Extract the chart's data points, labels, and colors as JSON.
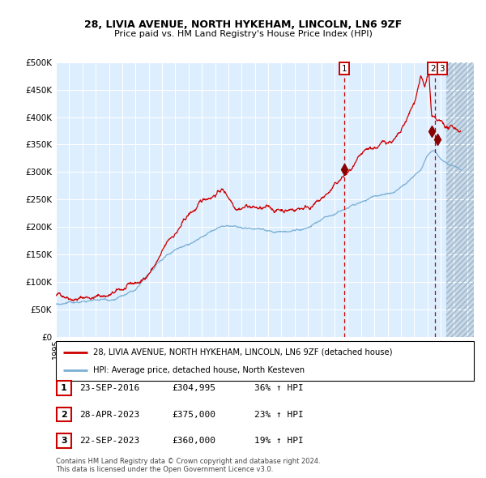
{
  "title": "28, LIVIA AVENUE, NORTH HYKEHAM, LINCOLN, LN6 9ZF",
  "subtitle": "Price paid vs. HM Land Registry's House Price Index (HPI)",
  "legend_line1": "28, LIVIA AVENUE, NORTH HYKEHAM, LINCOLN, LN6 9ZF (detached house)",
  "legend_line2": "HPI: Average price, detached house, North Kesteven",
  "table_rows": [
    {
      "num": "1",
      "date": "23-SEP-2016",
      "price": "£304,995",
      "change": "36% ↑ HPI"
    },
    {
      "num": "2",
      "date": "28-APR-2023",
      "price": "£375,000",
      "change": "23% ↑ HPI"
    },
    {
      "num": "3",
      "date": "22-SEP-2023",
      "price": "£360,000",
      "change": "19% ↑ HPI"
    }
  ],
  "copyright": "Contains HM Land Registry data © Crown copyright and database right 2024.\nThis data is licensed under the Open Government Licence v3.0.",
  "red_line_color": "#cc0000",
  "blue_line_color": "#7ab0d4",
  "bg_color": "#ddeeff",
  "grid_color": "#ffffff",
  "vline_color": "#cc0000",
  "marker_color": "#880000",
  "ylim": [
    0,
    500000
  ],
  "xlim_start": 1995.0,
  "xlim_end": 2026.5,
  "sale_dates": [
    2016.73,
    2023.32,
    2023.73
  ],
  "sale_prices": [
    304995,
    375000,
    360000
  ],
  "vline_dates": [
    2016.73,
    2023.55
  ],
  "hatch_start": 2024.42
}
